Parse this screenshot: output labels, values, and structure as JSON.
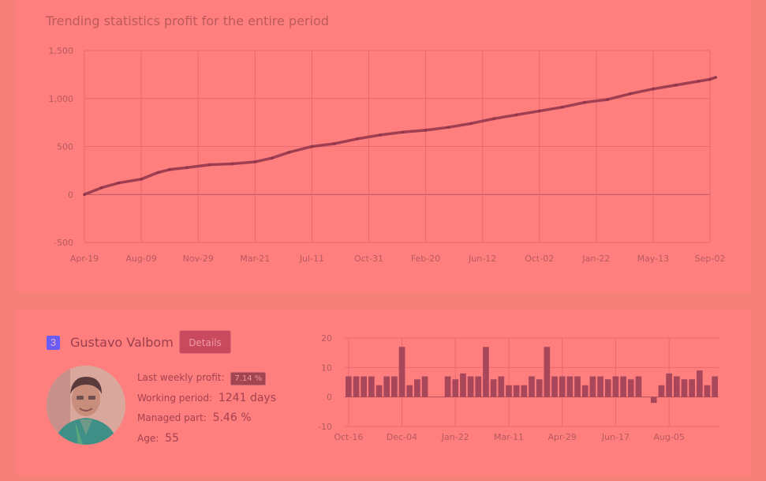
{
  "top": {
    "title": "Trending statistics profit for the entire period"
  },
  "chart_data": [
    {
      "type": "line",
      "title": "Trending statistics profit for the entire period",
      "ylim": [
        -500,
        1500
      ],
      "y_ticks": [
        "1,500",
        "1,000",
        "500",
        "0",
        "-500"
      ],
      "x_ticks": [
        "Apr-19",
        "Aug-09",
        "Nov-29",
        "Mar-21",
        "Jul-11",
        "Oct-31",
        "Feb-20",
        "Jun-12",
        "Oct-02",
        "Jan-22",
        "May-13",
        "Sep-02"
      ],
      "grid": true,
      "series": [
        {
          "x_tick_index": [
            0,
            0.3,
            0.6,
            1.0,
            1.3,
            1.5,
            1.8,
            2.2,
            2.6,
            3.0,
            3.3,
            3.6,
            4.0,
            4.4,
            4.8,
            5.2,
            5.6,
            6.0,
            6.4,
            6.8,
            7.2,
            7.6,
            8.0,
            8.4,
            8.8,
            9.2,
            9.6,
            10.0,
            10.4,
            10.8,
            11.0,
            11.1
          ],
          "values": [
            0,
            70,
            120,
            160,
            230,
            260,
            280,
            310,
            320,
            340,
            380,
            440,
            500,
            530,
            580,
            620,
            650,
            670,
            700,
            740,
            790,
            830,
            870,
            910,
            960,
            990,
            1050,
            1100,
            1140,
            1180,
            1200,
            1220
          ]
        }
      ]
    },
    {
      "type": "bar",
      "ylim": [
        -10,
        20
      ],
      "y_ticks": [
        "20",
        "10",
        "0",
        "-10"
      ],
      "x_ticks": [
        "Oct-16",
        "Dec-04",
        "Jan-22",
        "Mar-11",
        "Apr-29",
        "Jun-17",
        "Aug-05"
      ],
      "grid": true,
      "values": [
        7,
        7,
        7,
        7,
        4,
        7,
        7,
        17,
        4,
        6,
        7,
        0,
        0,
        7,
        6,
        8,
        7,
        7,
        17,
        6,
        7,
        4,
        4,
        4,
        7,
        6,
        17,
        7,
        7,
        7,
        7,
        4,
        7,
        7,
        6,
        7,
        7,
        6,
        7,
        0,
        -2,
        4,
        8,
        7,
        6,
        6,
        9,
        4,
        7
      ]
    }
  ],
  "trader": {
    "rank": "3",
    "name": "Gustavo Valbom",
    "details_label": "Details",
    "weekly_profit_label": "Last weekly profit:",
    "weekly_profit_value": "7.14 %",
    "working_period_label": "Working period:",
    "working_period_value": "1241 days",
    "managed_part_label": "Managed part:",
    "managed_part_value": "5.46 %",
    "age_label": "Age:",
    "age_value": "55"
  }
}
